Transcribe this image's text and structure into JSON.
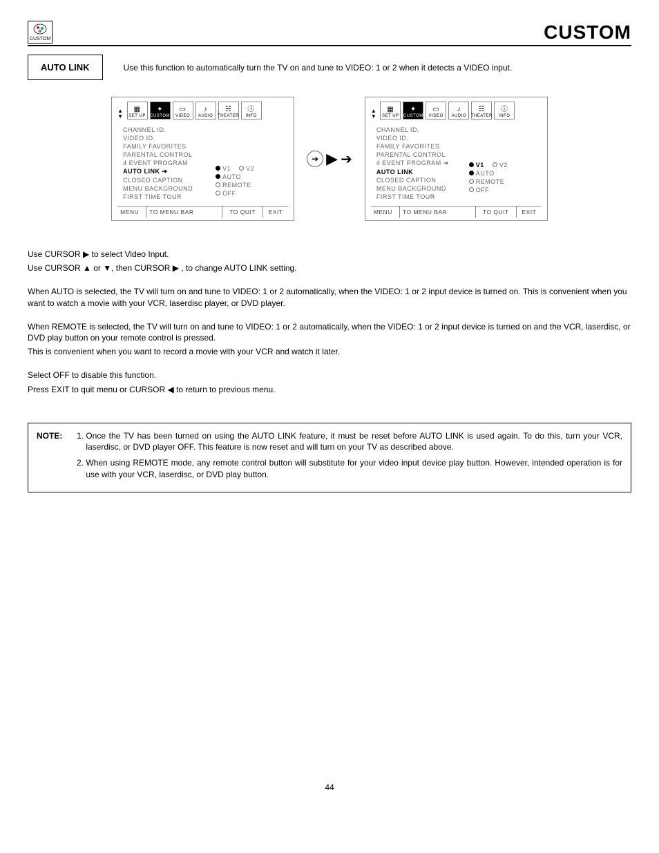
{
  "header": {
    "logo_label": "CUSTOM",
    "title": "CUSTOM"
  },
  "section": {
    "label": "AUTO LINK",
    "desc": "Use this function to automatically turn the TV on and tune to VIDEO: 1 or 2 when it detects a VIDEO input."
  },
  "tabs": [
    "SET UP",
    "CUSTOM",
    "VIDEO",
    "AUDIO",
    "THEATER",
    "INFO"
  ],
  "menu_left": {
    "items": [
      {
        "t": "CHANNEL ID."
      },
      {
        "t": "VIDEO ID."
      },
      {
        "t": "FAMILY FAVORITES"
      },
      {
        "t": "PARENTAL CONTROL"
      },
      {
        "t": "4 EVENT PROGRAM"
      },
      {
        "t": "AUTO LINK",
        "bold": true,
        "arrow": true
      },
      {
        "t": "CLOSED CAPTION"
      },
      {
        "t": "MENU BACKGROUND"
      },
      {
        "t": "FIRST TIME TOUR"
      }
    ],
    "v1_sel": true,
    "auto_sel": true,
    "remote_sel": false,
    "off_sel": false
  },
  "menu_right": {
    "items": [
      {
        "t": "CHANNEL ID."
      },
      {
        "t": "VIDEO ID."
      },
      {
        "t": "FAMILY FAVORITES"
      },
      {
        "t": "PARENTAL CONTROL"
      },
      {
        "t": "4 EVENT PROGRAM",
        "arrow": true
      },
      {
        "t": "AUTO LINK",
        "bold": true
      },
      {
        "t": "CLOSED CAPTION"
      },
      {
        "t": "MENU BACKGROUND"
      },
      {
        "t": "FIRST TIME TOUR"
      }
    ],
    "v1_bold": true,
    "v1_sel": true,
    "auto_sel": true,
    "remote_sel": false,
    "off_sel": false
  },
  "options": {
    "v1": "V1",
    "v2": "V2",
    "auto": "AUTO",
    "remote": "REMOTE",
    "off": "OFF"
  },
  "footer": {
    "a": "MENU",
    "b": "TO MENU BAR",
    "c": "TO QUIT",
    "d": "EXIT"
  },
  "body": {
    "p1": "Use CURSOR ▶ to select Video Input.",
    "p2": "Use CURSOR ▲ or ▼, then CURSOR ▶ , to change AUTO LINK setting.",
    "p3": "When AUTO is selected, the TV will turn on and tune to VIDEO: 1 or 2 automatically, when the VIDEO: 1 or 2 input device is turned on. This is convenient when you want to watch a movie with your VCR, laserdisc player, or DVD player.",
    "p4": "When REMOTE is selected, the TV will turn on and tune to VIDEO: 1 or 2 automatically, when the VIDEO: 1 or 2 input device is turned on and the VCR, laserdisc, or DVD play button on your remote control is pressed.",
    "p5": "This is convenient when you want to record a movie with your VCR and watch it later.",
    "p6": "Select OFF to disable this function.",
    "p7": "Press EXIT to quit menu or CURSOR ◀ to return to previous menu."
  },
  "note": {
    "label": "NOTE:",
    "n1": "Once the TV has been turned on using the AUTO LINK feature, it must be reset before AUTO LINK is used again. To do this, turn your VCR, laserdisc, or DVD player OFF. This feature is now reset and will turn on your TV as described above.",
    "n2": "When using REMOTE mode, any remote control button will substitute for your video input device play button. However, intended operation is for use with your VCR, laserdisc, or DVD play button."
  },
  "page_number": "44"
}
